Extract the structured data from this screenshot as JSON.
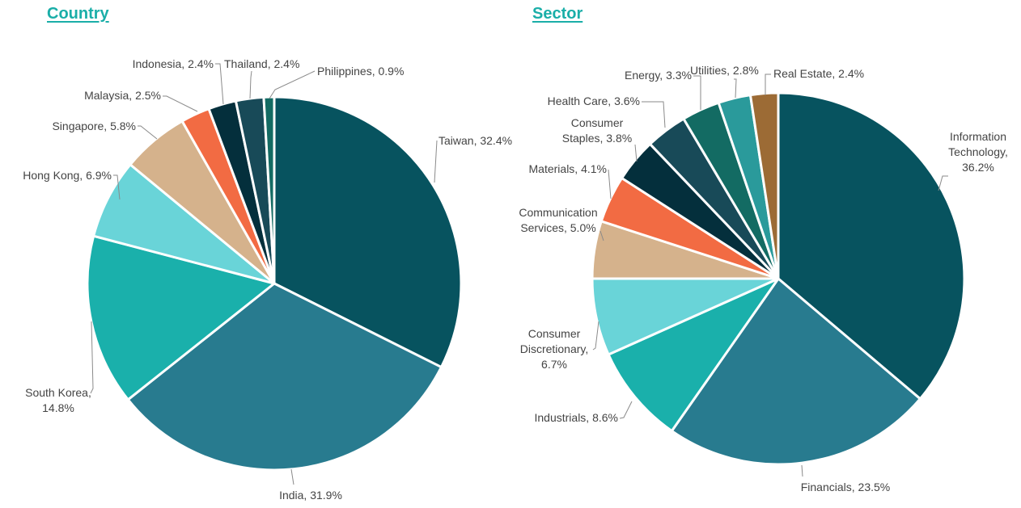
{
  "chart_data": [
    {
      "type": "pie",
      "title": "Country",
      "slices": [
        {
          "label": "Taiwan",
          "value": 32.4,
          "text": "Taiwan, 32.4%",
          "color": "#07535f"
        },
        {
          "label": "India",
          "value": 31.9,
          "text": "India, 31.9%",
          "color": "#287b8f"
        },
        {
          "label": "South Korea",
          "value": 14.8,
          "text": "South Korea, 14.8%",
          "color": "#1ab0ab"
        },
        {
          "label": "Hong Kong",
          "value": 6.9,
          "text": "Hong Kong, 6.9%",
          "color": "#69d4d8"
        },
        {
          "label": "Singapore",
          "value": 5.8,
          "text": "Singapore, 5.8%",
          "color": "#d5b28c"
        },
        {
          "label": "Malaysia",
          "value": 2.5,
          "text": "Malaysia, 2.5%",
          "color": "#f26b43"
        },
        {
          "label": "Indonesia",
          "value": 2.4,
          "text": "Indonesia, 2.4%",
          "color": "#042f3c"
        },
        {
          "label": "Thailand",
          "value": 2.4,
          "text": "Thailand, 2.4%",
          "color": "#184a58"
        },
        {
          "label": "Philippines",
          "value": 0.9,
          "text": "Philippines, 0.9%",
          "color": "#136b63"
        }
      ]
    },
    {
      "type": "pie",
      "title": "Sector",
      "slices": [
        {
          "label": "Information Technology",
          "value": 36.2,
          "text": "Information Technology, 36.2%",
          "color": "#07535f"
        },
        {
          "label": "Financials",
          "value": 23.5,
          "text": "Financials, 23.5%",
          "color": "#287b8f"
        },
        {
          "label": "Industrials",
          "value": 8.6,
          "text": "Industrials, 8.6%",
          "color": "#1ab0ab"
        },
        {
          "label": "Consumer Discretionary",
          "value": 6.7,
          "text": "Consumer Discretionary, 6.7%",
          "color": "#69d4d8"
        },
        {
          "label": "Communication Services",
          "value": 5.0,
          "text": "Communication Services, 5.0%",
          "color": "#d5b28c"
        },
        {
          "label": "Materials",
          "value": 4.1,
          "text": "Materials, 4.1%",
          "color": "#f26b43"
        },
        {
          "label": "Consumer Staples",
          "value": 3.8,
          "text": "Consumer Staples, 3.8%",
          "color": "#042f3c"
        },
        {
          "label": "Health Care",
          "value": 3.6,
          "text": "Health Care, 3.6%",
          "color": "#184a58"
        },
        {
          "label": "Energy",
          "value": 3.3,
          "text": "Energy, 3.3%",
          "color": "#136b63"
        },
        {
          "label": "Utilities",
          "value": 2.8,
          "text": "Utilities, 2.8%",
          "color": "#2a9a9b"
        },
        {
          "label": "Real Estate",
          "value": 2.4,
          "text": "Real Estate, 2.4%",
          "color": "#9c6b35"
        }
      ]
    }
  ]
}
